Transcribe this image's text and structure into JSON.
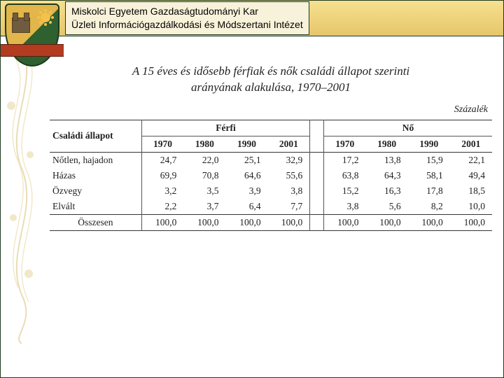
{
  "header": {
    "line1": "Miskolci Egyetem Gazdaságtudományi Kar",
    "line2": "Üzleti Információgazdálkodási és Módszertani Intézet"
  },
  "table": {
    "title_line1": "A 15 éves és idősebb férfiak és nők családi állapot szerinti",
    "title_line2": "arányának alakulása, 1970–2001",
    "unit_label": "Százalék",
    "row_header_label": "Családi állapot",
    "group_labels": {
      "male": "Férfi",
      "female": "Nő"
    },
    "years": [
      "1970",
      "1980",
      "1990",
      "2001"
    ],
    "rows": [
      {
        "label": "Nőtlen, hajadon",
        "male": [
          "24,7",
          "22,0",
          "25,1",
          "32,9"
        ],
        "female": [
          "17,2",
          "13,8",
          "15,9",
          "22,1"
        ]
      },
      {
        "label": "Házas",
        "male": [
          "69,9",
          "70,8",
          "64,6",
          "55,6"
        ],
        "female": [
          "63,8",
          "64,3",
          "58,1",
          "49,4"
        ]
      },
      {
        "label": "Özvegy",
        "male": [
          "3,2",
          "3,5",
          "3,9",
          "3,8"
        ],
        "female": [
          "15,2",
          "16,3",
          "17,8",
          "18,5"
        ]
      },
      {
        "label": "Elvált",
        "male": [
          "2,2",
          "3,7",
          "6,4",
          "7,7"
        ],
        "female": [
          "3,8",
          "5,6",
          "8,2",
          "10,0"
        ]
      }
    ],
    "total": {
      "label": "Összesen",
      "male": [
        "100,0",
        "100,0",
        "100,0",
        "100,0"
      ],
      "female": [
        "100,0",
        "100,0",
        "100,0",
        "100,0"
      ]
    },
    "colors": {
      "rule": "#333333",
      "text": "#222222"
    }
  }
}
